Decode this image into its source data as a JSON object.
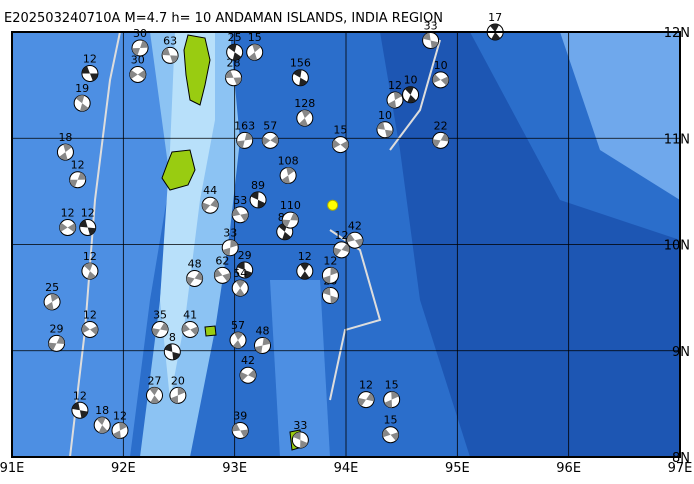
{
  "title": "E202503240710A M=4.7 h= 10 ANDAMAN ISLANDS, INDIA REGION",
  "map": {
    "xlim": [
      91,
      97
    ],
    "ylim": [
      8,
      12
    ],
    "xticks": [
      {
        "value": 91,
        "label": "91E"
      },
      {
        "value": 92,
        "label": "92E"
      },
      {
        "value": 93,
        "label": "93E"
      },
      {
        "value": 94,
        "label": "94E"
      },
      {
        "value": 95,
        "label": "95E"
      },
      {
        "value": 96,
        "label": "96E"
      },
      {
        "value": 97,
        "label": "97E"
      }
    ],
    "yticks": [
      {
        "value": 8,
        "label": "8N"
      },
      {
        "value": 9,
        "label": "9N"
      },
      {
        "value": 10,
        "label": "10N"
      },
      {
        "value": 11,
        "label": "11N"
      },
      {
        "value": 12,
        "label": "12N"
      }
    ],
    "epicenter": {
      "lon": 93.88,
      "lat": 10.37
    },
    "events": [
      {
        "lon": 91.7,
        "lat": 11.61,
        "depth": 12
      },
      {
        "lon": 91.63,
        "lat": 11.33,
        "depth": 19
      },
      {
        "lon": 91.48,
        "lat": 10.87,
        "depth": 18
      },
      {
        "lon": 91.59,
        "lat": 10.61,
        "depth": 12
      },
      {
        "lon": 91.5,
        "lat": 10.16,
        "depth": 12
      },
      {
        "lon": 91.68,
        "lat": 10.16,
        "depth": 12
      },
      {
        "lon": 91.7,
        "lat": 9.75,
        "depth": 12
      },
      {
        "lon": 91.36,
        "lat": 9.46,
        "depth": 25
      },
      {
        "lon": 91.4,
        "lat": 9.07,
        "depth": 29
      },
      {
        "lon": 91.7,
        "lat": 9.2,
        "depth": 12
      },
      {
        "lon": 91.61,
        "lat": 8.44,
        "depth": 12
      },
      {
        "lon": 91.81,
        "lat": 8.3,
        "depth": 18
      },
      {
        "lon": 91.97,
        "lat": 8.25,
        "depth": 12
      },
      {
        "lon": 92.33,
        "lat": 9.2,
        "depth": 35
      },
      {
        "lon": 92.6,
        "lat": 9.2,
        "depth": 41
      },
      {
        "lon": 92.44,
        "lat": 8.99,
        "depth": 8
      },
      {
        "lon": 92.28,
        "lat": 8.58,
        "depth": 27
      },
      {
        "lon": 92.49,
        "lat": 8.58,
        "depth": 20
      },
      {
        "lon": 92.64,
        "lat": 9.68,
        "depth": 48
      },
      {
        "lon": 92.89,
        "lat": 9.71,
        "depth": 62
      },
      {
        "lon": 93.09,
        "lat": 9.76,
        "depth": 29
      },
      {
        "lon": 93.05,
        "lat": 9.59,
        "depth": 54
      },
      {
        "lon": 92.96,
        "lat": 9.97,
        "depth": 33
      },
      {
        "lon": 92.78,
        "lat": 10.37,
        "depth": 44
      },
      {
        "lon": 93.05,
        "lat": 10.28,
        "depth": 53
      },
      {
        "lon": 93.21,
        "lat": 10.42,
        "depth": 89
      },
      {
        "lon": 93.03,
        "lat": 9.1,
        "depth": 57
      },
      {
        "lon": 93.25,
        "lat": 9.05,
        "depth": 48
      },
      {
        "lon": 93.12,
        "lat": 8.77,
        "depth": 42
      },
      {
        "lon": 93.05,
        "lat": 8.25,
        "depth": 39
      },
      {
        "lon": 93.59,
        "lat": 11.57,
        "depth": 156
      },
      {
        "lon": 93.63,
        "lat": 11.19,
        "depth": 128
      },
      {
        "lon": 93.09,
        "lat": 10.98,
        "depth": 163
      },
      {
        "lon": 93.32,
        "lat": 10.98,
        "depth": 57
      },
      {
        "lon": 92.99,
        "lat": 11.57,
        "depth": 28
      },
      {
        "lon": 93.0,
        "lat": 11.81,
        "depth": 25
      },
      {
        "lon": 93.18,
        "lat": 11.81,
        "depth": 15
      },
      {
        "lon": 92.15,
        "lat": 11.85,
        "depth": 30
      },
      {
        "lon": 92.13,
        "lat": 11.6,
        "depth": 30
      },
      {
        "lon": 92.42,
        "lat": 11.78,
        "depth": 63
      },
      {
        "lon": 93.45,
        "lat": 10.12,
        "depth": 86
      },
      {
        "lon": 93.48,
        "lat": 10.65,
        "depth": 108
      },
      {
        "lon": 93.5,
        "lat": 10.23,
        "depth": 110
      },
      {
        "lon": 93.95,
        "lat": 10.94,
        "depth": 15
      },
      {
        "lon": 94.35,
        "lat": 11.08,
        "depth": 10
      },
      {
        "lon": 94.58,
        "lat": 11.41,
        "depth": 10
      },
      {
        "lon": 94.44,
        "lat": 11.36,
        "depth": 12
      },
      {
        "lon": 94.85,
        "lat": 10.98,
        "depth": 22
      },
      {
        "lon": 94.85,
        "lat": 11.55,
        "depth": 10
      },
      {
        "lon": 94.76,
        "lat": 11.92,
        "depth": 33
      },
      {
        "lon": 95.34,
        "lat": 12.0,
        "depth": 17
      },
      {
        "lon": 94.41,
        "lat": 8.54,
        "depth": 15
      },
      {
        "lon": 94.18,
        "lat": 8.54,
        "depth": 12
      },
      {
        "lon": 94.4,
        "lat": 8.21,
        "depth": 15
      },
      {
        "lon": 93.86,
        "lat": 9.52,
        "depth": 20
      },
      {
        "lon": 93.63,
        "lat": 9.75,
        "depth": 12
      },
      {
        "lon": 93.86,
        "lat": 9.71,
        "depth": 12
      },
      {
        "lon": 93.96,
        "lat": 9.95,
        "depth": 12
      },
      {
        "lon": 94.08,
        "lat": 10.04,
        "depth": 42
      },
      {
        "lon": 93.59,
        "lat": 8.16,
        "depth": 33
      }
    ]
  }
}
